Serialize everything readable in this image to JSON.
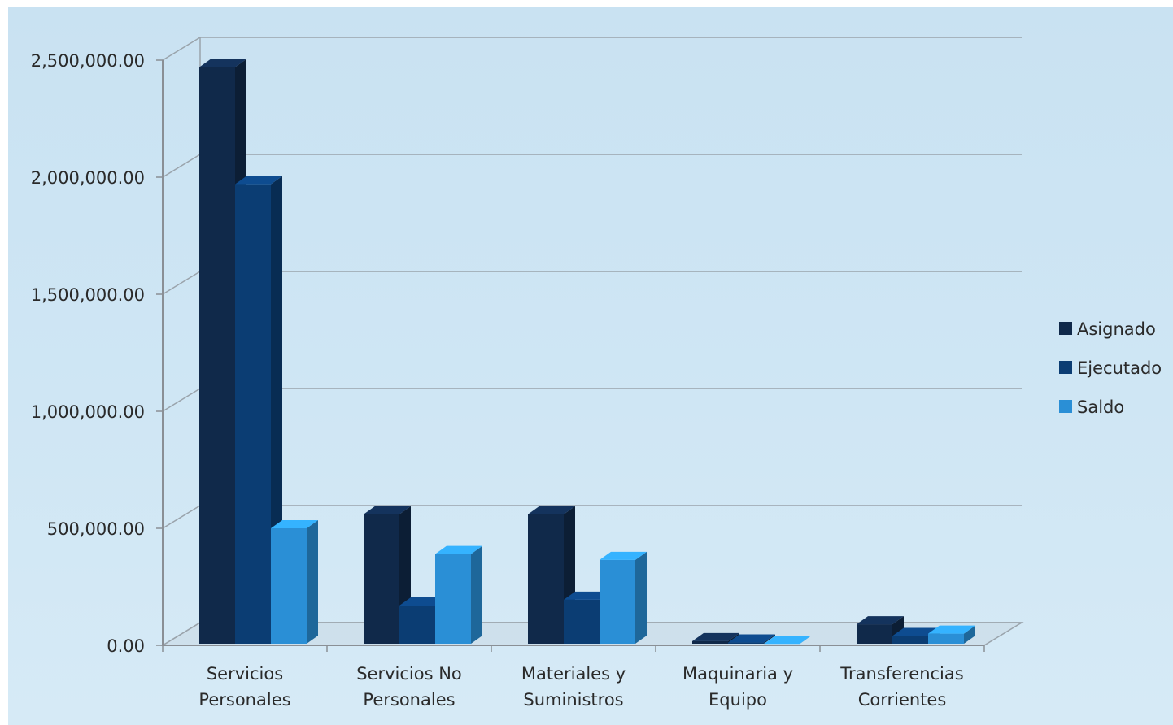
{
  "chart_data": {
    "type": "bar",
    "categories": [
      [
        "Servicios",
        "Personales"
      ],
      [
        "Servicios No",
        "Personales"
      ],
      [
        "Materiales y",
        "Suministros"
      ],
      [
        "Maquinaria y",
        "Equipo"
      ],
      [
        "Transferencias",
        "Corrientes"
      ]
    ],
    "series": [
      {
        "name": "Asignado",
        "values": [
          2470000,
          560000,
          560000,
          18000,
          90000
        ]
      },
      {
        "name": "Ejecutado",
        "values": [
          1970000,
          170000,
          195000,
          12000,
          40000
        ]
      },
      {
        "name": "Saldo",
        "values": [
          500000,
          390000,
          365000,
          6000,
          50000
        ]
      }
    ],
    "ylim": [
      0,
      2500000
    ],
    "yticks": [
      0,
      500000,
      1000000,
      1500000,
      2000000,
      2500000
    ],
    "ytick_labels": [
      "0.00",
      "500,000.00",
      "1,000,000.00",
      "1,500,000.00",
      "2,000,000.00",
      "2,500,000.00"
    ],
    "grid": true,
    "legend_position": "right",
    "colors": {
      "Asignado": "#10294a",
      "Ejecutado": "#0b3d73",
      "Saldo": "#2a8fd6"
    }
  }
}
